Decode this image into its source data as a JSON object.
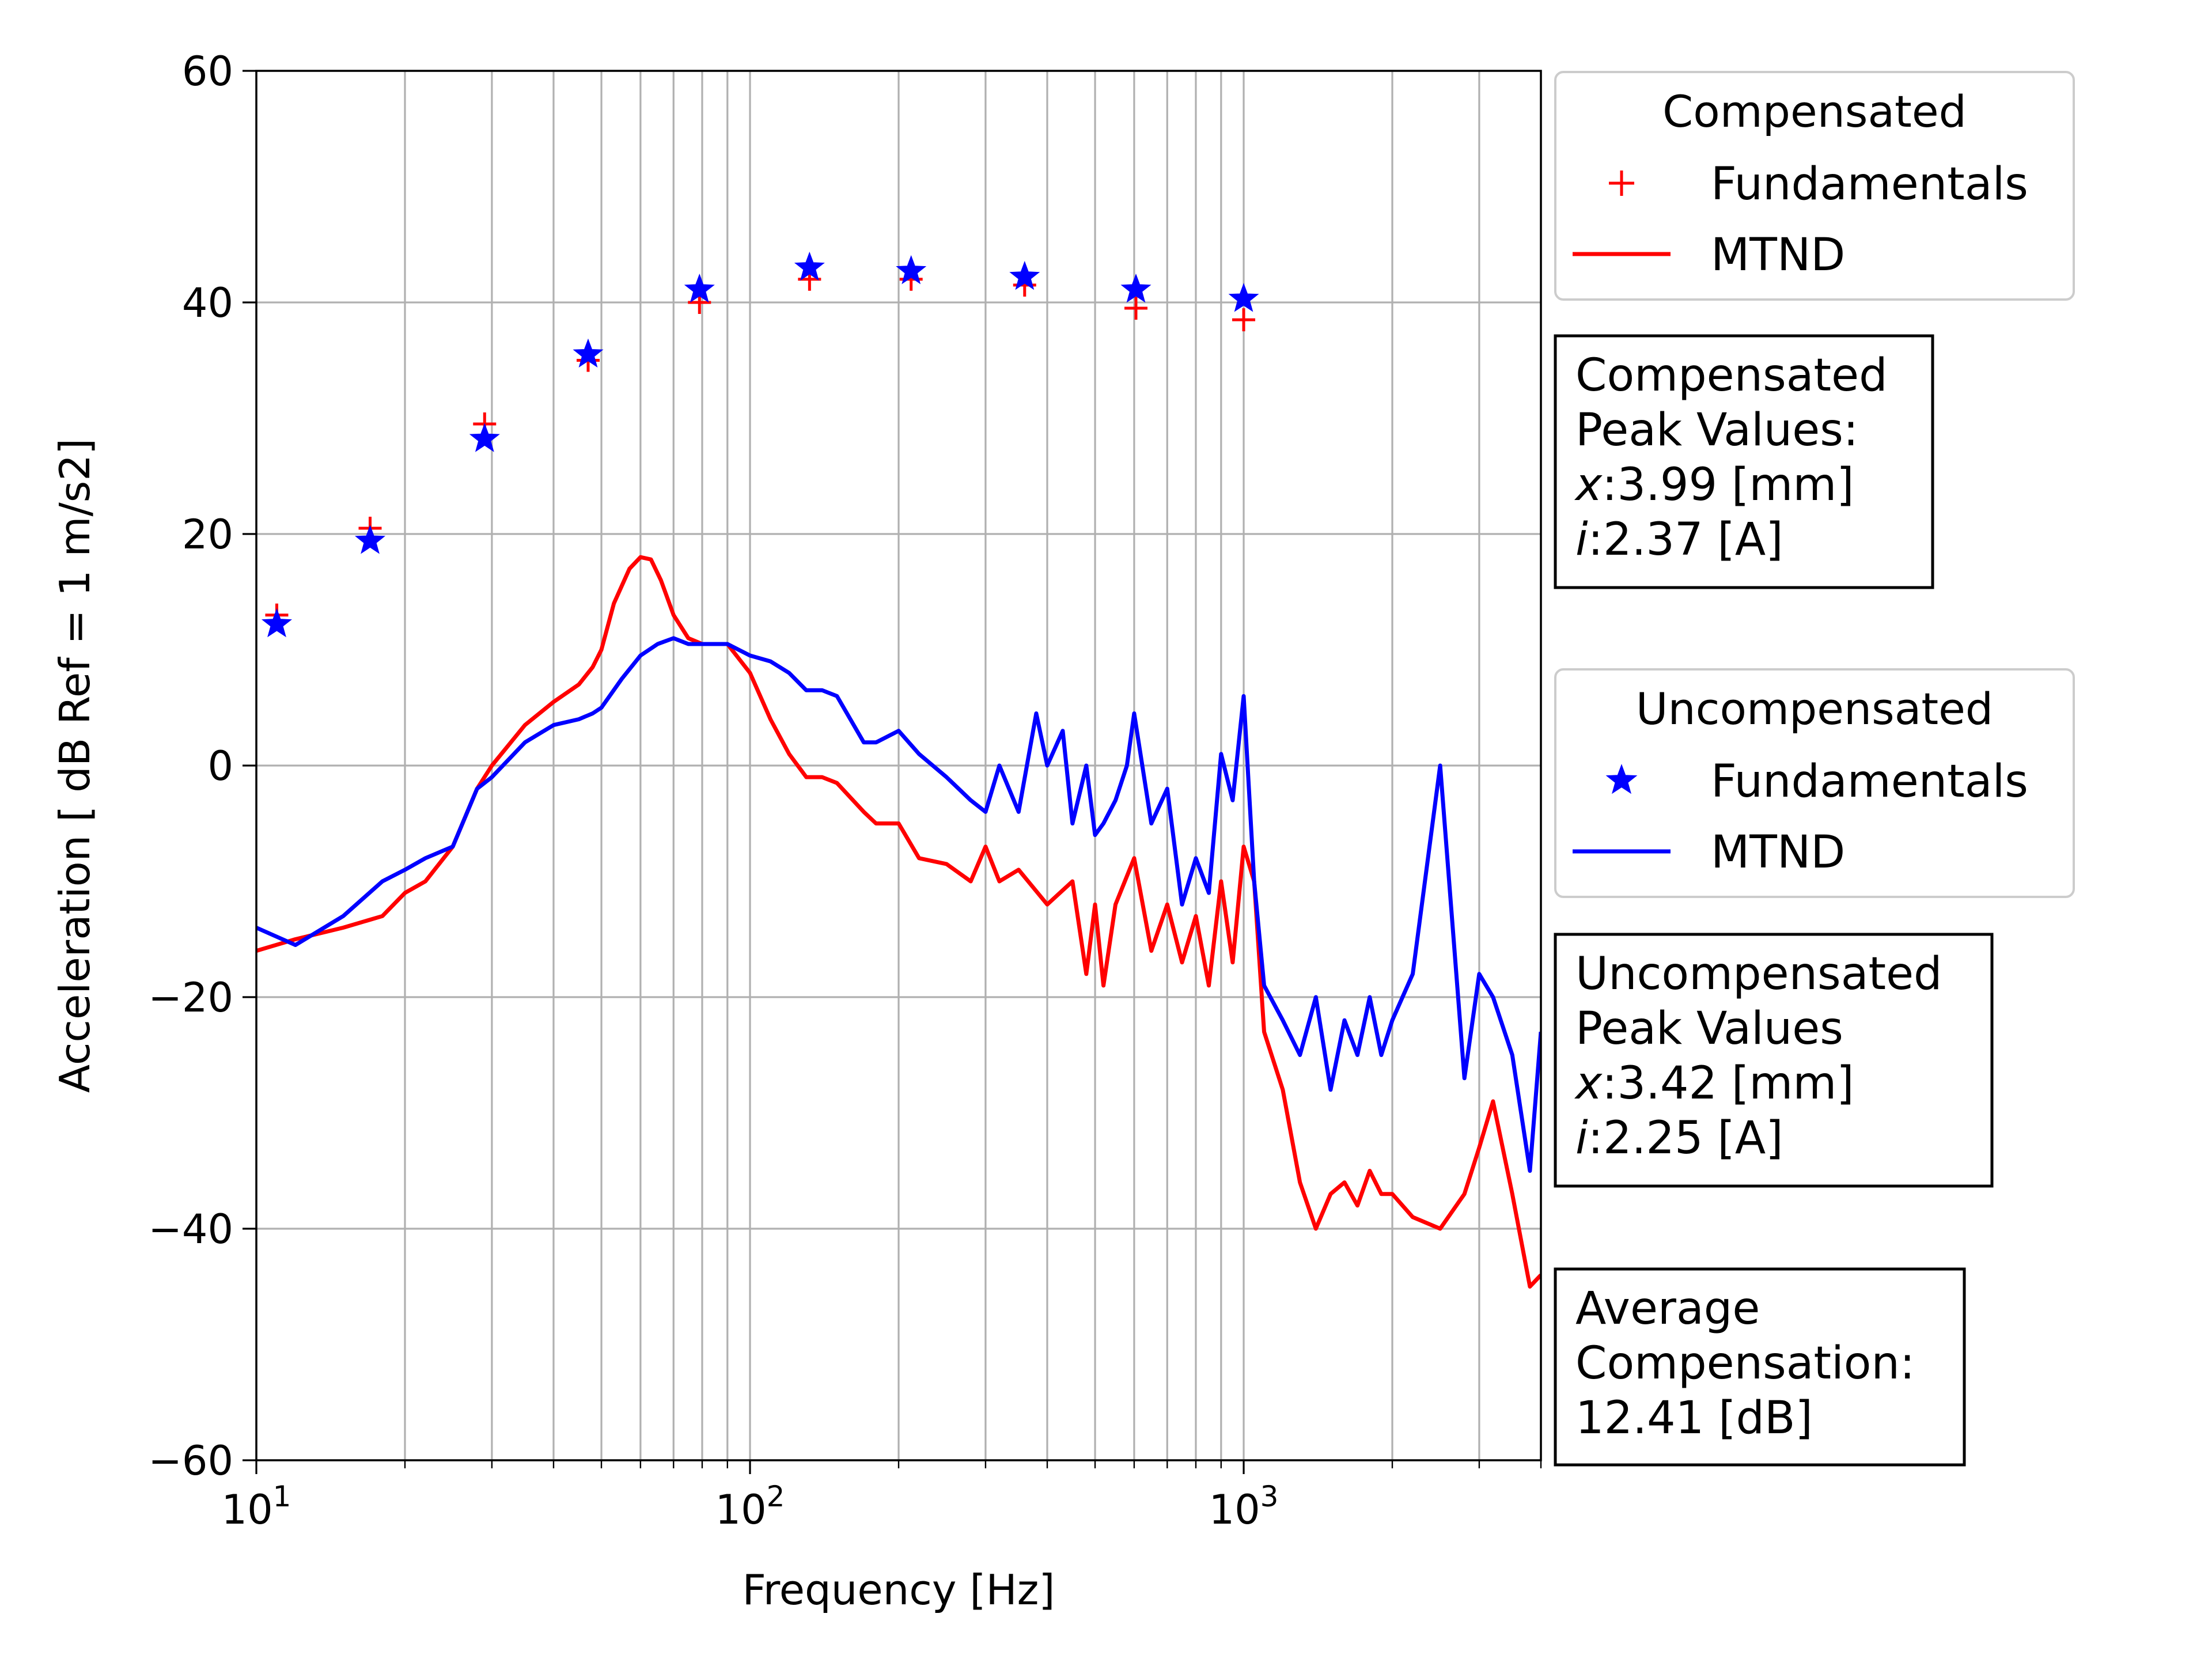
{
  "chart_data": {
    "type": "line",
    "xlabel": "Frequency [Hz]",
    "ylabel": "Acceleration [ dB Ref = 1 m/s2]",
    "xscale": "log",
    "xlim": [
      10,
      4000
    ],
    "ylim": [
      -60,
      60
    ],
    "grid": true,
    "x_tick_labels": [
      {
        "base": "10",
        "exp": "1",
        "value": 10
      },
      {
        "base": "10",
        "exp": "2",
        "value": 100
      },
      {
        "base": "10",
        "exp": "3",
        "value": 1000
      }
    ],
    "y_ticks": [
      {
        "value": 60,
        "label": "60"
      },
      {
        "value": 40,
        "label": "40"
      },
      {
        "value": 20,
        "label": "20"
      },
      {
        "value": 0,
        "label": "0"
      },
      {
        "value": -20,
        "label": "−20"
      },
      {
        "value": -40,
        "label": "−40"
      },
      {
        "value": -60,
        "label": "−60"
      }
    ],
    "colors": {
      "compensated": "#ff0000",
      "uncompensated": "#0000ff"
    },
    "series": [
      {
        "name": "Fundamentals",
        "group": "Compensated",
        "kind": "marker-plus",
        "color": "#ff0000",
        "x": [
          11,
          17,
          29,
          47,
          79,
          132,
          212,
          360,
          605,
          1000
        ],
        "y": [
          13,
          20.5,
          29.5,
          35,
          40,
          42,
          42,
          41.5,
          39.5,
          38.5
        ]
      },
      {
        "name": "Fundamentals",
        "group": "Uncompensated",
        "kind": "marker-star",
        "color": "#0000ff",
        "x": [
          11,
          17,
          29,
          47,
          79,
          132,
          212,
          360,
          605,
          1000
        ],
        "y": [
          12.2,
          19.4,
          28.2,
          35.5,
          41.1,
          43,
          42.7,
          42.2,
          41.1,
          40.3
        ]
      },
      {
        "name": "MTND",
        "group": "Compensated",
        "kind": "line",
        "color": "#ff0000",
        "x": [
          10,
          12,
          15,
          18,
          20,
          22,
          25,
          28,
          30,
          35,
          40,
          45,
          48,
          50,
          53,
          57,
          60,
          63,
          66,
          70,
          75,
          80,
          90,
          100,
          110,
          120,
          130,
          140,
          150,
          170,
          180,
          200,
          220,
          250,
          280,
          300,
          320,
          350,
          400,
          450,
          480,
          500,
          520,
          550,
          600,
          650,
          700,
          750,
          800,
          850,
          900,
          950,
          1000,
          1050,
          1100,
          1200,
          1300,
          1400,
          1500,
          1600,
          1700,
          1800,
          1900,
          2000,
          2200,
          2500,
          2800,
          3000,
          3200,
          3500,
          3800,
          4000
        ],
        "y": [
          -16,
          -15,
          -14,
          -13,
          -11,
          -10,
          -7,
          -2,
          0,
          3.5,
          5.5,
          7,
          8.5,
          10,
          14,
          17,
          18,
          17.8,
          16,
          13,
          11,
          10.5,
          10.5,
          8,
          4,
          1,
          -1,
          -1,
          -1.5,
          -4,
          -5,
          -5,
          -8,
          -8.5,
          -10,
          -7,
          -10,
          -9,
          -12,
          -10,
          -18,
          -12,
          -19,
          -12,
          -8,
          -16,
          -12,
          -17,
          -13,
          -19,
          -10,
          -17,
          -7,
          -10,
          -23,
          -28,
          -36,
          -40,
          -37,
          -36,
          -38,
          -35,
          -37,
          -37,
          -39,
          -40,
          -37,
          -33,
          -29,
          -37,
          -45,
          -44
        ]
      },
      {
        "name": "MTND",
        "group": "Uncompensated",
        "kind": "line",
        "color": "#0000ff",
        "x": [
          10,
          12,
          15,
          18,
          20,
          22,
          25,
          28,
          30,
          35,
          40,
          45,
          48,
          50,
          55,
          60,
          65,
          70,
          75,
          80,
          90,
          100,
          110,
          120,
          130,
          140,
          150,
          170,
          180,
          200,
          220,
          250,
          280,
          300,
          320,
          350,
          380,
          400,
          430,
          450,
          480,
          500,
          520,
          550,
          580,
          600,
          650,
          700,
          750,
          800,
          850,
          900,
          950,
          1000,
          1050,
          1100,
          1200,
          1300,
          1400,
          1500,
          1600,
          1700,
          1800,
          1900,
          2000,
          2200,
          2500,
          2800,
          3000,
          3200,
          3500,
          3800,
          4000
        ],
        "y": [
          -14,
          -15.5,
          -13,
          -10,
          -9,
          -8,
          -7,
          -2,
          -1,
          2,
          3.5,
          4,
          4.5,
          5,
          7.5,
          9.5,
          10.5,
          11,
          10.5,
          10.5,
          10.5,
          9.5,
          9,
          8,
          6.5,
          6.5,
          6,
          2,
          2,
          3,
          1,
          -1,
          -3,
          -4,
          0,
          -4,
          4.5,
          0,
          3,
          -5,
          0,
          -6,
          -5,
          -3,
          0,
          4.5,
          -5,
          -2,
          -12,
          -8,
          -11,
          1,
          -3,
          6,
          -10,
          -19,
          -22,
          -25,
          -20,
          -28,
          -22,
          -25,
          -20,
          -25,
          -22,
          -18,
          0,
          -27,
          -18,
          -20,
          -25,
          -35,
          -23
        ]
      }
    ],
    "legends": [
      {
        "title": "Compensated",
        "entries": [
          {
            "label": "Fundamentals",
            "marker": "plus",
            "color": "#ff0000"
          },
          {
            "label": "MTND",
            "marker": "line",
            "color": "#ff0000"
          }
        ]
      },
      {
        "title": "Uncompensated",
        "entries": [
          {
            "label": "Fundamentals",
            "marker": "star",
            "color": "#0000ff"
          },
          {
            "label": "MTND",
            "marker": "line",
            "color": "#0000ff"
          }
        ]
      }
    ],
    "annotations": [
      {
        "lines": [
          {
            "text": "Compensated"
          },
          {
            "text": "Peak Values:"
          },
          {
            "var": "x",
            "text": ":3.99 [mm]"
          },
          {
            "var": "i",
            "text": ":2.37 [A]"
          }
        ]
      },
      {
        "lines": [
          {
            "text": "Uncompensated"
          },
          {
            "text": "Peak Values"
          },
          {
            "var": "x",
            "text": ":3.42 [mm]"
          },
          {
            "var": "i",
            "text": ":2.25 [A]"
          }
        ]
      },
      {
        "lines": [
          {
            "text": "Average"
          },
          {
            "text": "Compensation:"
          },
          {
            "text": "12.41 [dB]"
          }
        ]
      }
    ]
  }
}
